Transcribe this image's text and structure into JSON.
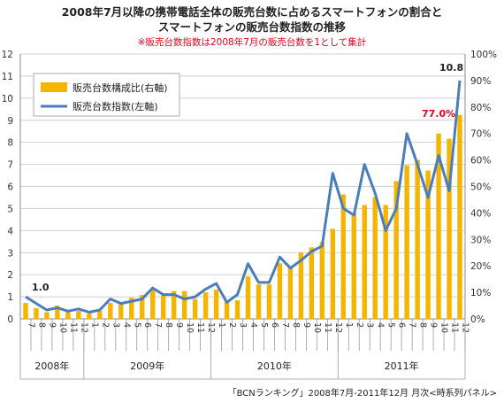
{
  "chart_data": {
    "type": "bar+line",
    "title_line1": "2008年7月以降の携帯電話全体の販売台数に占めるスマートフォンの割合と",
    "title_line2": "スマートフォンの販売台数指数の推移",
    "subtitle": "※販売台数指数は2008年7月の販売台数を1として集計",
    "source": "「BCNランキング」2008年7月-2011年12月 月次<時系列パネル>",
    "legend": {
      "position": "top-left",
      "bar_label": "販売台数構成比(右軸)",
      "line_label": "販売台数指数(左軸)"
    },
    "colors": {
      "bar": "#f5b400",
      "line": "#4a7ebb",
      "anno_first": "#222222",
      "anno_pct": "#e8001c",
      "anno_max": "#222222"
    },
    "left_axis": {
      "min": 0,
      "max": 12,
      "step": 1,
      "ticks": [
        "0",
        "1",
        "2",
        "3",
        "4",
        "5",
        "6",
        "7",
        "8",
        "9",
        "10",
        "11",
        "12"
      ]
    },
    "right_axis": {
      "min": 0,
      "max": 100,
      "step": 10,
      "ticks": [
        "0%",
        "10%",
        "20%",
        "30%",
        "40%",
        "50%",
        "60%",
        "70%",
        "80%",
        "90%",
        "100%"
      ]
    },
    "grid": true,
    "months": [
      "7",
      "8",
      "9",
      "10",
      "11",
      "12",
      "1",
      "2",
      "3",
      "4",
      "5",
      "6",
      "7",
      "8",
      "9",
      "10",
      "11",
      "12",
      "1",
      "2",
      "3",
      "4",
      "5",
      "6",
      "7",
      "8",
      "9",
      "10",
      "11",
      "12",
      "1",
      "2",
      "3",
      "4",
      "5",
      "6",
      "7",
      "8",
      "9",
      "10",
      "11",
      "12"
    ],
    "years": [
      {
        "label": "2008年",
        "start": 0,
        "count": 6
      },
      {
        "label": "2009年",
        "start": 6,
        "count": 12
      },
      {
        "label": "2010年",
        "start": 18,
        "count": 12
      },
      {
        "label": "2011年",
        "start": 30,
        "count": 12
      }
    ],
    "series": [
      {
        "name": "販売台数構成比(右軸)",
        "axis": "right",
        "kind": "bar",
        "values": [
          6,
          4,
          2.5,
          5,
          2.5,
          3,
          2,
          3,
          6,
          6,
          8,
          9,
          11,
          9,
          10.5,
          10.5,
          7.5,
          10,
          11,
          7,
          7,
          16,
          13,
          13,
          21,
          20,
          25,
          27,
          29,
          34,
          47,
          40,
          43,
          46,
          43,
          52,
          58,
          60,
          56,
          70,
          68,
          77
        ]
      },
      {
        "name": "販売台数指数(左軸)",
        "axis": "left",
        "kind": "line",
        "values": [
          1.0,
          0.7,
          0.4,
          0.5,
          0.35,
          0.45,
          0.3,
          0.4,
          0.9,
          0.7,
          0.8,
          0.9,
          1.4,
          1.1,
          1.1,
          0.9,
          1.0,
          1.35,
          1.6,
          0.75,
          1.1,
          2.5,
          1.65,
          1.65,
          2.8,
          2.3,
          2.65,
          3.05,
          3.3,
          6.6,
          5.0,
          4.7,
          7.0,
          5.7,
          4.0,
          5.0,
          8.4,
          7.0,
          5.5,
          7.4,
          5.8,
          10.8
        ]
      }
    ],
    "annotations": {
      "first": "1.0",
      "max_pct": "77.0%",
      "max_index": "10.8"
    }
  }
}
